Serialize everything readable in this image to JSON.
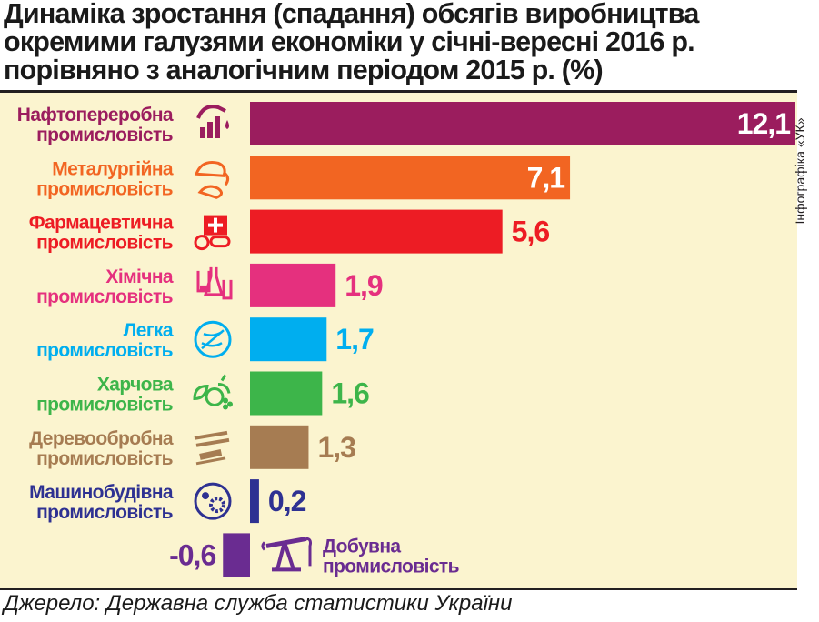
{
  "title_lines": [
    "Динаміка зростання (спадання) обсягів виробництва",
    "окремими галузями економіки у січні-вересні 2016 р.",
    "порівняно з аналогічним періодом 2015 р. (%)"
  ],
  "credit": "Інфографіка «УК»",
  "source": "Джерело: Державна служба статистики України",
  "colors": {
    "panel_background": "#fbf4cf",
    "text_dark": "#1a1a1a"
  },
  "chart_data": {
    "type": "bar",
    "orientation": "horizontal",
    "categories": [
      [
        "Нафтопереробна",
        "промисловість"
      ],
      [
        "Металургійна",
        "промисловість"
      ],
      [
        "Фармацевтична",
        "промисловість"
      ],
      [
        "Хімічна",
        "промисловість"
      ],
      [
        "Легка",
        "промисловість"
      ],
      [
        "Харчова",
        "промисловість"
      ],
      [
        "Деревообробна",
        "промисловість"
      ],
      [
        "Машинобудівна",
        "промисловість"
      ],
      [
        "Добувна",
        "промисловість"
      ]
    ],
    "values": [
      12.1,
      7.1,
      5.6,
      1.9,
      1.7,
      1.6,
      1.3,
      0.2,
      -0.6
    ],
    "value_labels": [
      "12,1",
      "7,1",
      "5,6",
      "1,9",
      "1,7",
      "1,6",
      "1,3",
      "0,2",
      "-0,6"
    ],
    "colors": [
      "#9b1d5e",
      "#f26522",
      "#ed1c24",
      "#e5307e",
      "#00aeef",
      "#3db54a",
      "#a67c52",
      "#2e3192",
      "#6a2c91"
    ],
    "icons": [
      "oil-refinery-icon",
      "metallurgy-ladle-icon",
      "pharmacy-pills-icon",
      "chemistry-flasks-icon",
      "textile-thread-icon",
      "food-produce-icon",
      "woodworking-tools-icon",
      "machine-gears-icon",
      "oil-pumpjack-icon"
    ],
    "xlim": [
      -0.6,
      12.1
    ],
    "grid": false,
    "legend": "none"
  }
}
